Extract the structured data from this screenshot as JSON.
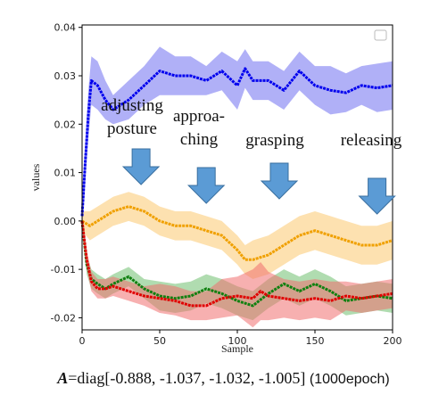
{
  "chart_data": {
    "type": "line",
    "xlabel": "Sample",
    "ylabel": "values",
    "xlim": [
      0,
      200
    ],
    "ylim": [
      -0.0225,
      0.0405
    ],
    "x_ticks": [
      "0",
      "50",
      "100",
      "150",
      "200"
    ],
    "y_ticks": [
      "-0.02",
      "-0.01",
      "0.00",
      "0.01",
      "0.02",
      "0.03",
      "0.04"
    ],
    "x_tick_values": [
      0,
      50,
      100,
      150,
      200
    ],
    "y_tick_values": [
      -0.02,
      -0.01,
      0.0,
      0.01,
      0.02,
      0.03,
      0.04
    ],
    "grid": false,
    "legend": "top-right (empty)",
    "series": [
      {
        "color": "#0000ee",
        "band_color": "#7070f0",
        "x": [
          0,
          2,
          4,
          6,
          10,
          15,
          20,
          30,
          40,
          50,
          60,
          70,
          80,
          90,
          100,
          105,
          110,
          120,
          130,
          140,
          150,
          160,
          170,
          180,
          190,
          200
        ],
        "values": [
          0.001,
          0.012,
          0.022,
          0.029,
          0.028,
          0.025,
          0.023,
          0.025,
          0.028,
          0.031,
          0.03,
          0.03,
          0.029,
          0.031,
          0.028,
          0.0315,
          0.029,
          0.029,
          0.027,
          0.031,
          0.028,
          0.027,
          0.0265,
          0.028,
          0.0275,
          0.028
        ],
        "band": [
          0.003,
          0.004,
          0.005,
          0.005,
          0.005,
          0.004,
          0.003,
          0.004,
          0.004,
          0.005,
          0.004,
          0.004,
          0.003,
          0.004,
          0.005,
          0.004,
          0.004,
          0.004,
          0.004,
          0.004,
          0.004,
          0.005,
          0.004,
          0.004,
          0.005,
          0.005
        ]
      },
      {
        "color": "#f0a000",
        "band_color": "#fbc870",
        "x": [
          0,
          5,
          10,
          20,
          30,
          40,
          50,
          60,
          70,
          80,
          90,
          100,
          105,
          110,
          120,
          130,
          140,
          150,
          160,
          170,
          180,
          190,
          200
        ],
        "values": [
          0.0,
          -0.001,
          0.0,
          0.002,
          0.003,
          0.002,
          0.0,
          -0.001,
          -0.001,
          -0.002,
          -0.003,
          -0.006,
          -0.008,
          -0.008,
          -0.007,
          -0.005,
          -0.003,
          -0.002,
          -0.003,
          -0.004,
          -0.005,
          -0.005,
          -0.004
        ],
        "band": [
          0.002,
          0.003,
          0.003,
          0.003,
          0.003,
          0.003,
          0.003,
          0.003,
          0.003,
          0.003,
          0.003,
          0.003,
          0.003,
          0.004,
          0.004,
          0.004,
          0.004,
          0.004,
          0.004,
          0.004,
          0.004,
          0.004,
          0.004
        ]
      },
      {
        "color": "#108010",
        "band_color": "#70c070",
        "x": [
          0,
          3,
          6,
          10,
          15,
          20,
          30,
          40,
          50,
          60,
          70,
          80,
          90,
          100,
          110,
          120,
          130,
          140,
          150,
          160,
          170,
          180,
          190,
          200
        ],
        "values": [
          0.0,
          -0.009,
          -0.012,
          -0.013,
          -0.014,
          -0.013,
          -0.0115,
          -0.014,
          -0.0155,
          -0.016,
          -0.0155,
          -0.014,
          -0.015,
          -0.0165,
          -0.0175,
          -0.015,
          -0.013,
          -0.0145,
          -0.013,
          -0.0145,
          -0.0165,
          -0.016,
          -0.0155,
          -0.016
        ],
        "band": [
          0.001,
          0.002,
          0.002,
          0.002,
          0.002,
          0.002,
          0.002,
          0.002,
          0.003,
          0.003,
          0.003,
          0.003,
          0.003,
          0.003,
          0.003,
          0.003,
          0.003,
          0.003,
          0.003,
          0.003,
          0.003,
          0.003,
          0.003,
          0.003
        ]
      },
      {
        "color": "#e00000",
        "band_color": "#f07070",
        "x": [
          0,
          3,
          6,
          10,
          15,
          20,
          30,
          40,
          50,
          60,
          70,
          80,
          90,
          100,
          110,
          115,
          120,
          130,
          140,
          150,
          160,
          170,
          180,
          190,
          200
        ],
        "values": [
          0.0,
          -0.008,
          -0.0125,
          -0.014,
          -0.014,
          -0.0135,
          -0.0145,
          -0.0155,
          -0.016,
          -0.0165,
          -0.0175,
          -0.0175,
          -0.016,
          -0.0155,
          -0.016,
          -0.0145,
          -0.0155,
          -0.016,
          -0.0165,
          -0.016,
          -0.0165,
          -0.0155,
          -0.016,
          -0.0155,
          -0.015
        ],
        "band": [
          0.001,
          0.002,
          0.002,
          0.002,
          0.002,
          0.002,
          0.002,
          0.002,
          0.003,
          0.003,
          0.003,
          0.003,
          0.004,
          0.004,
          0.006,
          0.006,
          0.005,
          0.004,
          0.004,
          0.004,
          0.004,
          0.003,
          0.003,
          0.003,
          0.003
        ]
      }
    ],
    "annotations": [
      {
        "lines": [
          "adjusting",
          "posture"
        ],
        "arrow_x": 38
      },
      {
        "lines": [
          "approa-",
          "ching"
        ],
        "arrow_x": 80
      },
      {
        "lines": [
          "grasping"
        ],
        "arrow_x": 127
      },
      {
        "lines": [
          "releasing"
        ],
        "arrow_x": 190
      }
    ]
  },
  "caption": {
    "matrix_symbol": "A",
    "formula": "=diag[-0.888, -1.037, -1.032, -1.005] ",
    "epoch": "(1000epoch)"
  }
}
